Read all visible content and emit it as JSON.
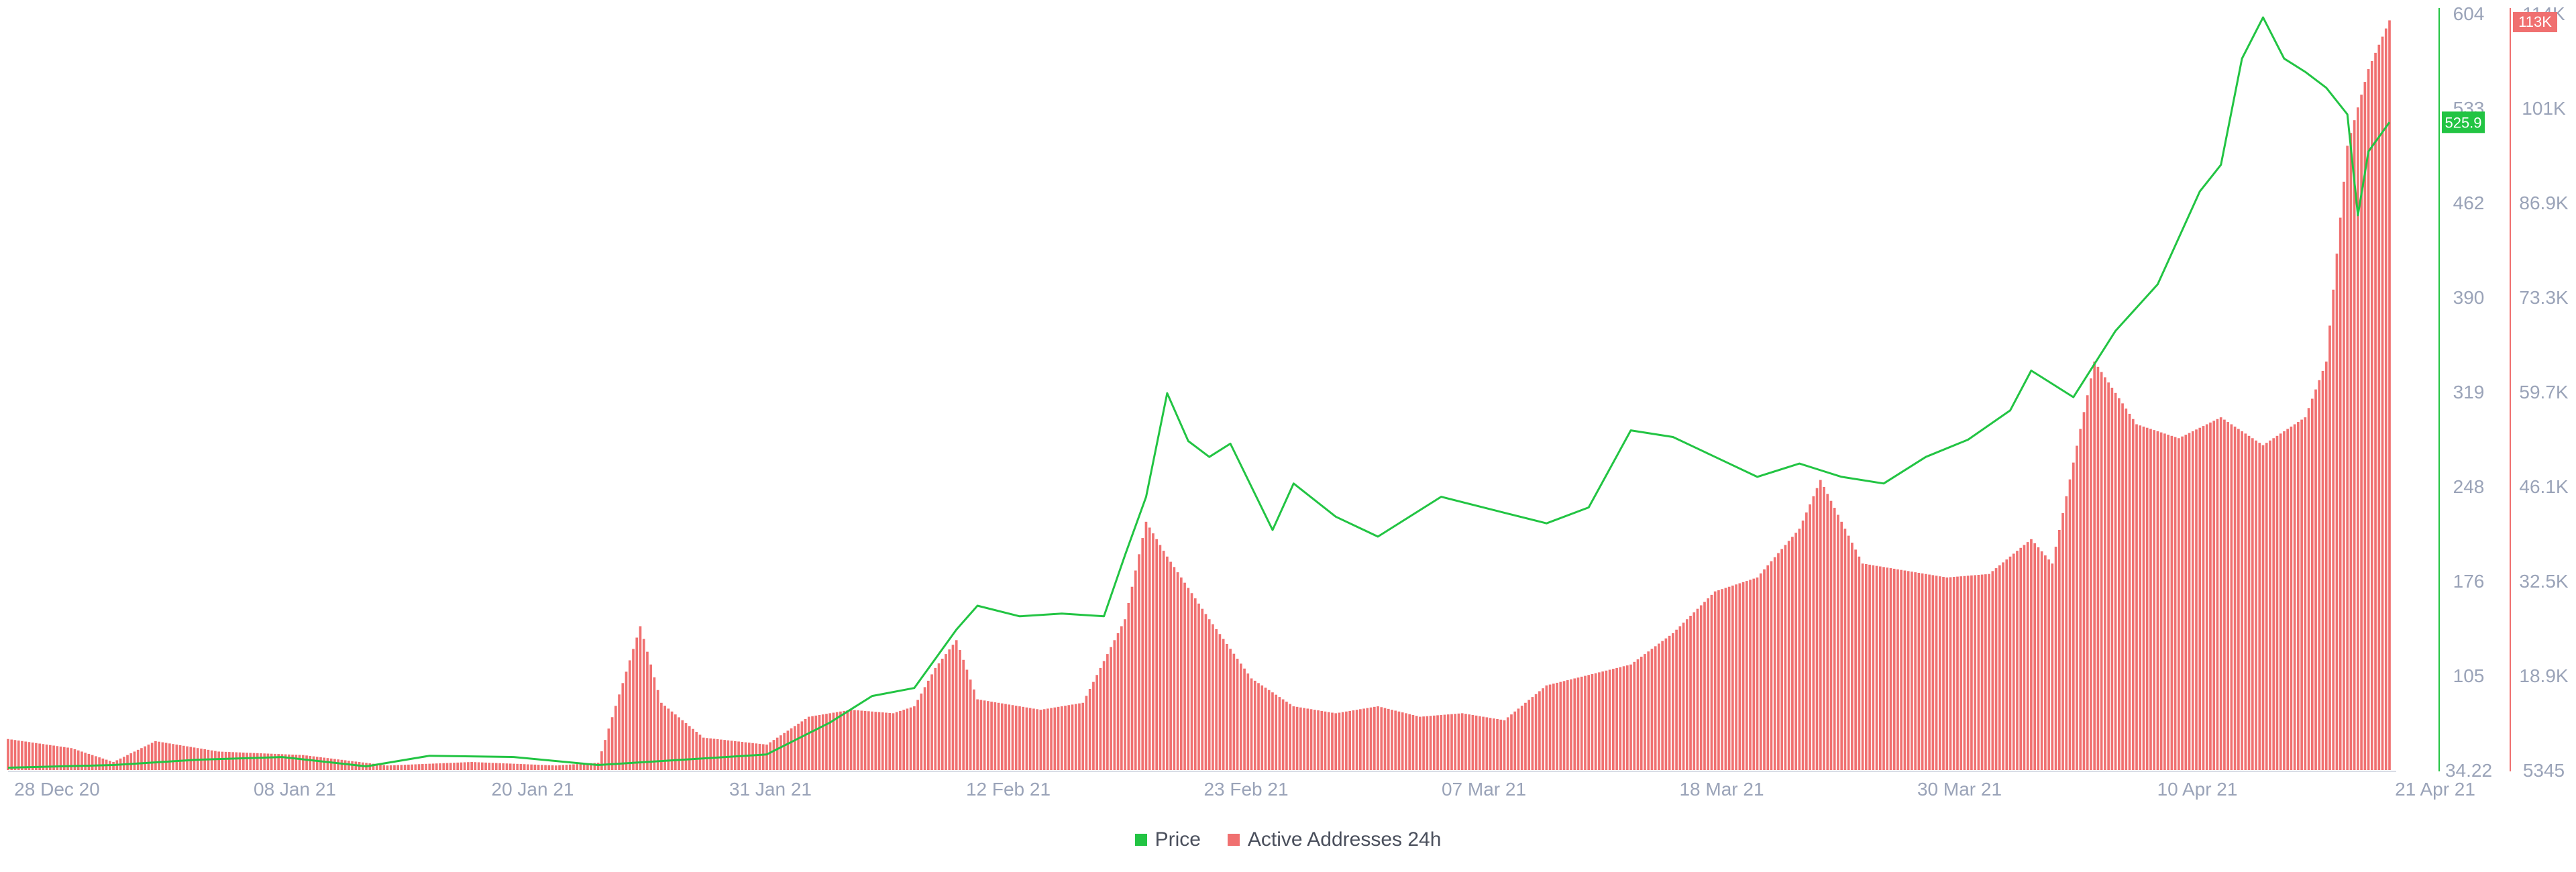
{
  "chart_data": {
    "type": "line",
    "x_ticks": [
      "28 Dec 20",
      "08 Jan 21",
      "20 Jan 21",
      "31 Jan 21",
      "12 Feb 21",
      "23 Feb 21",
      "07 Mar 21",
      "18 Mar 21",
      "30 Mar 21",
      "10 Apr 21",
      "21 Apr 21"
    ],
    "y_left_ticks": [
      "604",
      "533",
      "462",
      "390",
      "319",
      "248",
      "176",
      "105",
      "34.22"
    ],
    "y_left_range": [
      34.22,
      604
    ],
    "y_right_ticks": [
      "114K",
      "101K",
      "86.9K",
      "73.3K",
      "59.7K",
      "46.1K",
      "32.5K",
      "18.9K",
      "5345"
    ],
    "y_right_range": [
      5345,
      114000
    ],
    "x_range": [
      "2020-12-27",
      "2021-04-19"
    ],
    "price_badge": "525.9",
    "active_badge": "113K",
    "series": [
      {
        "name": "Price",
        "color": "#22c443",
        "axis": "left",
        "type": "line",
        "x": [
          "2020-12-27",
          "2021-01-01",
          "2021-01-05",
          "2021-01-09",
          "2021-01-13",
          "2021-01-16",
          "2021-01-20",
          "2021-01-24",
          "2021-01-28",
          "2021-02-01",
          "2021-02-04",
          "2021-02-06",
          "2021-02-08",
          "2021-02-10",
          "2021-02-11",
          "2021-02-13",
          "2021-02-15",
          "2021-02-17",
          "2021-02-18",
          "2021-02-19",
          "2021-02-20",
          "2021-02-21",
          "2021-02-22",
          "2021-02-23",
          "2021-02-25",
          "2021-02-26",
          "2021-02-28",
          "2021-03-02",
          "2021-03-05",
          "2021-03-08",
          "2021-03-10",
          "2021-03-12",
          "2021-03-14",
          "2021-03-16",
          "2021-03-18",
          "2021-03-20",
          "2021-03-22",
          "2021-03-23",
          "2021-03-24",
          "2021-03-26",
          "2021-03-28",
          "2021-03-30",
          "2021-04-01",
          "2021-04-02",
          "2021-04-04",
          "2021-04-06",
          "2021-04-08",
          "2021-04-10",
          "2021-04-11",
          "2021-04-12",
          "2021-04-13",
          "2021-04-14",
          "2021-04-15",
          "2021-04-16",
          "2021-04-17",
          "2021-04-17T12:00",
          "2021-04-18",
          "2021-04-19"
        ],
        "values": [
          36,
          38,
          42,
          44,
          37,
          45,
          44,
          38,
          42,
          46,
          70,
          90,
          96,
          140,
          158,
          150,
          152,
          150,
          196,
          240,
          318,
          282,
          270,
          280,
          215,
          250,
          225,
          210,
          240,
          228,
          220,
          232,
          290,
          285,
          270,
          255,
          265,
          260,
          255,
          250,
          270,
          283,
          305,
          335,
          315,
          365,
          400,
          470,
          490,
          570,
          601,
          570,
          560,
          548,
          528,
          452,
          500,
          522
        ]
      },
      {
        "name": "Active Addresses 24h",
        "color": "#f07070",
        "axis": "right",
        "type": "bar",
        "x": [
          "2020-12-27",
          "2020-12-30",
          "2021-01-01",
          "2021-01-03",
          "2021-01-06",
          "2021-01-10",
          "2021-01-14",
          "2021-01-18",
          "2021-01-22",
          "2021-01-24",
          "2021-01-26",
          "2021-01-27",
          "2021-01-29",
          "2021-02-01",
          "2021-02-03",
          "2021-02-05",
          "2021-02-07",
          "2021-02-08",
          "2021-02-09",
          "2021-02-10",
          "2021-02-11",
          "2021-02-12",
          "2021-02-14",
          "2021-02-16",
          "2021-02-18",
          "2021-02-19",
          "2021-02-20",
          "2021-02-22",
          "2021-02-24",
          "2021-02-26",
          "2021-02-28",
          "2021-03-02",
          "2021-03-04",
          "2021-03-06",
          "2021-03-08",
          "2021-03-10",
          "2021-03-12",
          "2021-03-14",
          "2021-03-16",
          "2021-03-18",
          "2021-03-20",
          "2021-03-22",
          "2021-03-23",
          "2021-03-25",
          "2021-03-27",
          "2021-03-29",
          "2021-03-31",
          "2021-04-02",
          "2021-04-03",
          "2021-04-05",
          "2021-04-07",
          "2021-04-09",
          "2021-04-11",
          "2021-04-13",
          "2021-04-15",
          "2021-04-16",
          "2021-04-17",
          "2021-04-18",
          "2021-04-19"
        ],
        "values": [
          9800,
          8500,
          6500,
          9500,
          8000,
          7500,
          6000,
          6500,
          6000,
          6400,
          26000,
          15000,
          10000,
          9000,
          13000,
          14000,
          13500,
          14500,
          20000,
          24000,
          15500,
          15000,
          14000,
          15000,
          27000,
          41000,
          36000,
          27000,
          18500,
          14500,
          13500,
          14500,
          13000,
          13500,
          12500,
          17500,
          19000,
          20500,
          25000,
          31000,
          33000,
          40000,
          47000,
          35000,
          34000,
          33000,
          33500,
          38500,
          35000,
          64000,
          55000,
          53000,
          56000,
          52000,
          56000,
          64000,
          95000,
          106000,
          113000
        ]
      }
    ]
  },
  "legend": {
    "price_label": "Price",
    "active_label": "Active Addresses 24h"
  }
}
